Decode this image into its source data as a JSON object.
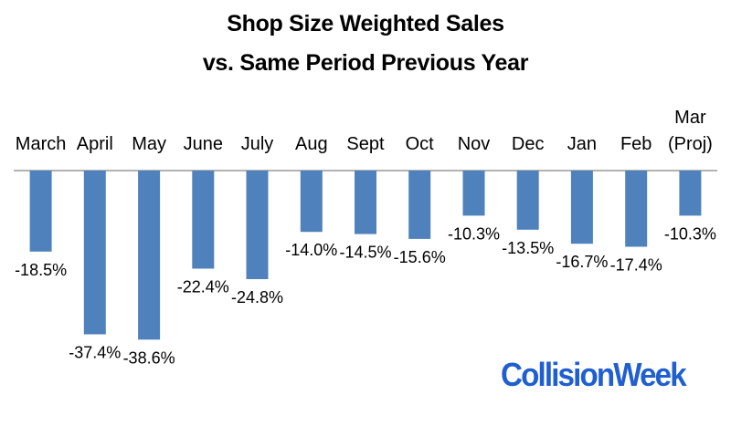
{
  "chart_data": {
    "type": "bar",
    "title": [
      "Shop Size Weighted Sales",
      "vs. Same Period Previous Year"
    ],
    "categories": [
      [
        "March"
      ],
      [
        "April"
      ],
      [
        "May"
      ],
      [
        "June"
      ],
      [
        "July"
      ],
      [
        "Aug"
      ],
      [
        "Sept"
      ],
      [
        "Oct"
      ],
      [
        "Nov"
      ],
      [
        "Dec"
      ],
      [
        "Jan"
      ],
      [
        "Feb"
      ],
      [
        "Mar",
        "(Proj)"
      ]
    ],
    "values": [
      -18.5,
      -37.4,
      -38.6,
      -22.4,
      -24.8,
      -14.0,
      -14.5,
      -15.6,
      -10.3,
      -13.5,
      -16.7,
      -17.4,
      -10.3
    ],
    "value_labels": [
      "-18.5%",
      "-37.4%",
      "-38.6%",
      "-22.4%",
      "-24.8%",
      "-14.0%",
      "-14.5%",
      "-15.6%",
      "-10.3%",
      "-13.5%",
      "-16.7%",
      "-17.4%",
      "-10.3%"
    ],
    "ylim": [
      -40,
      0
    ],
    "bar_color": "#4f81bd",
    "axis_color": "#999999",
    "grid": false,
    "legend": "none"
  },
  "logo": {
    "text": "CollisionWeek",
    "color": "#1f5fd0"
  }
}
